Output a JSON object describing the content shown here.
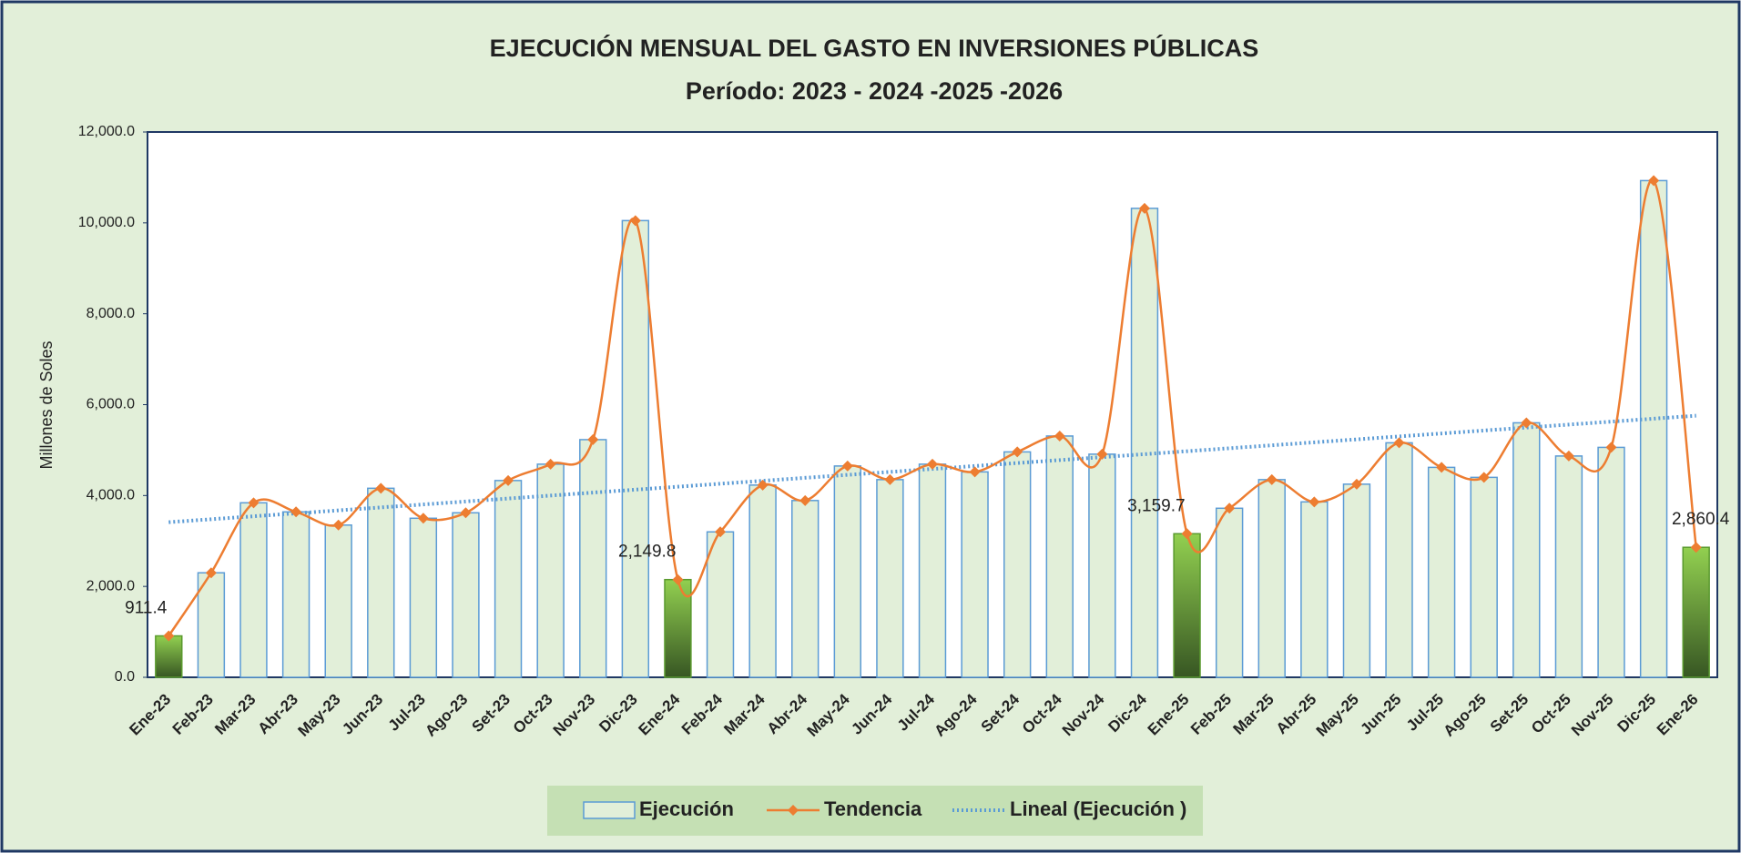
{
  "chart_data": {
    "type": "bar",
    "title": "EJECUCIÓN MENSUAL DEL GASTO EN INVERSIONES PÚBLICAS",
    "subtitle": "Período: 2023 - 2024 -2025 -2026",
    "ylabel": "Millones de Soles",
    "categories": [
      "Ene-23",
      "Feb-23",
      "Mar-23",
      "Abr-23",
      "May-23",
      "Jun-23",
      "Jul-23",
      "Ago-23",
      "Set-23",
      "Oct-23",
      "Nov-23",
      "Dic-23",
      "Ene-24",
      "Feb-24",
      "Mar-24",
      "Abr-24",
      "May-24",
      "Jun-24",
      "Jul-24",
      "Ago-24",
      "Set-24",
      "Oct-24",
      "Nov-24",
      "Dic-24",
      "Ene-25",
      "Feb-25",
      "Mar-25",
      "Abr-25",
      "May-25",
      "Jun-25",
      "Jul-25",
      "Ago-25",
      "Set-25",
      "Oct-25",
      "Nov-25",
      "Dic-25",
      "Ene-26"
    ],
    "series": [
      {
        "name": "Ejecución",
        "color": "#e2efd9",
        "edge_color": "#5b9bd5",
        "highlight_color": "#5a9a2e",
        "values": [
          911.4,
          2300,
          3840,
          3640,
          3350,
          4160,
          3500,
          3620,
          4330,
          4690,
          5230,
          10050,
          2149.8,
          3200,
          4230,
          3890,
          4650,
          4350,
          4690,
          4520,
          4960,
          5310,
          4910,
          10320,
          3159.7,
          3720,
          4350,
          3860,
          4250,
          5160,
          4620,
          4400,
          5600,
          4870,
          5060,
          10930,
          2860.4
        ],
        "value_labels": [
          "911.4",
          null,
          null,
          null,
          null,
          null,
          null,
          null,
          null,
          null,
          null,
          null,
          "2,149.8",
          null,
          null,
          null,
          null,
          null,
          null,
          null,
          null,
          null,
          null,
          null,
          "3,159.7",
          null,
          null,
          null,
          null,
          null,
          null,
          null,
          null,
          null,
          null,
          null,
          "2,860.4"
        ]
      }
    ],
    "line_name": "Tendencia",
    "line_color": "#ed7d31",
    "trend_name": "Lineal (Ejecución )",
    "trend_color": "#5b9bd5",
    "ylim": [
      0,
      12000
    ],
    "yticks": [
      {
        "value": 0,
        "label": "0.0"
      },
      {
        "value": 2000,
        "label": "2,000.0"
      },
      {
        "value": 4000,
        "label": "4,000.0"
      },
      {
        "value": 6000,
        "label": "6,000.0"
      },
      {
        "value": 8000,
        "label": "8,000.0"
      },
      {
        "value": 10000,
        "label": "10,000.0"
      },
      {
        "value": 12000,
        "label": "12,000.0"
      }
    ],
    "legend": "bottom"
  }
}
